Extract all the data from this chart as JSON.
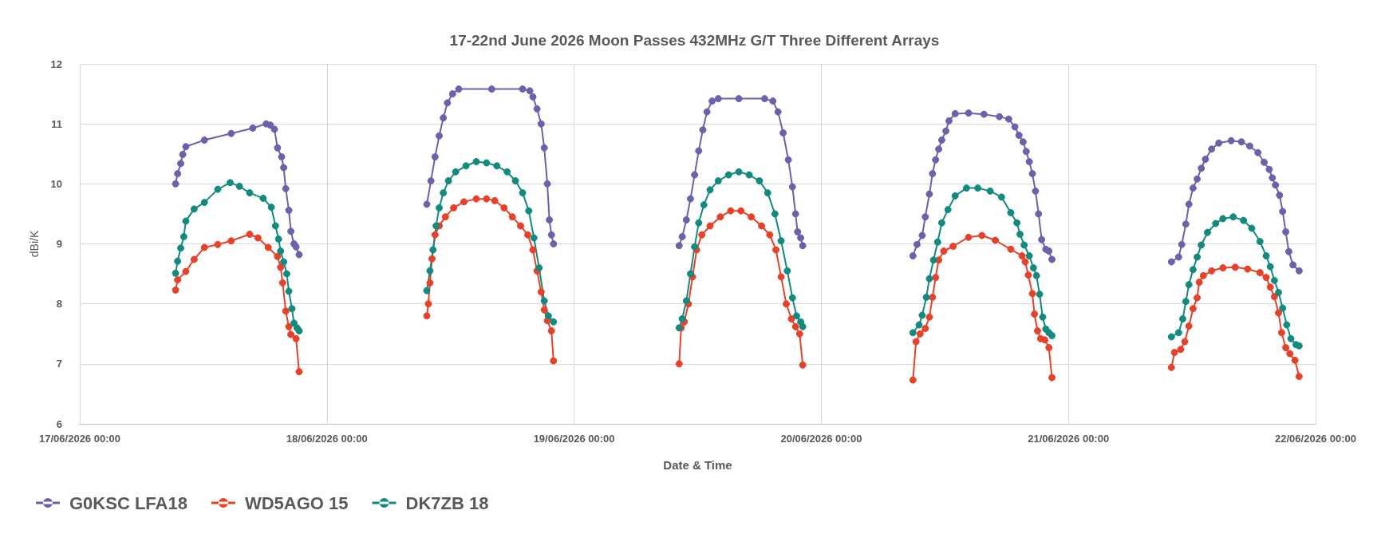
{
  "chart_data": {
    "type": "line",
    "title": "17-22nd June 2026 Moon Passes 432MHz G/T Three Different Arrays",
    "xlabel": "Date & Time",
    "ylabel": "dBi/K",
    "xlim": [
      "2026-06-17T00:00",
      "2026-06-22T00:00"
    ],
    "xticks": [
      {
        "value": "2026-06-17T00:00",
        "label": "17/06/2026 00:00"
      },
      {
        "value": "2026-06-18T00:00",
        "label": "18/06/2026 00:00"
      },
      {
        "value": "2026-06-19T00:00",
        "label": "19/06/2026 00:00"
      },
      {
        "value": "2026-06-20T00:00",
        "label": "20/06/2026 00:00"
      },
      {
        "value": "2026-06-21T00:00",
        "label": "21/06/2026 00:00"
      },
      {
        "value": "2026-06-22T00:00",
        "label": "22/06/2026 00:00"
      }
    ],
    "ylim": [
      6,
      12
    ],
    "yticks": [
      6,
      7,
      8,
      9,
      10,
      11,
      12
    ],
    "grid": true,
    "legend": "bottom left",
    "marker": "circle",
    "line_style": "solid",
    "series": [
      {
        "name": "G0KSC LFA18",
        "color": "#6a62aa",
        "x": [
          "2026-06-17T09:18",
          "2026-06-17T09:30",
          "2026-06-17T09:48",
          "2026-06-17T10:00",
          "2026-06-17T10:18",
          "2026-06-17T12:06",
          "2026-06-17T14:42",
          "2026-06-17T16:48",
          "2026-06-17T18:06",
          "2026-06-17T18:30",
          "2026-06-17T18:54",
          "2026-06-17T19:12",
          "2026-06-17T19:36",
          "2026-06-17T19:48",
          "2026-06-17T20:00",
          "2026-06-17T20:18",
          "2026-06-17T20:30",
          "2026-06-17T20:48",
          "2026-06-17T21:00",
          "2026-06-17T21:18",
          "2026-06-18T03:00",
          "2026-06-18T09:42",
          "2026-06-18T10:06",
          "2026-06-18T10:30",
          "2026-06-18T10:54",
          "2026-06-18T11:18",
          "2026-06-18T11:42",
          "2026-06-18T12:12",
          "2026-06-18T12:48",
          "2026-06-18T16:00",
          "2026-06-18T19:00",
          "2026-06-18T19:42",
          "2026-06-18T20:00",
          "2026-06-18T20:24",
          "2026-06-18T20:48",
          "2026-06-18T21:06",
          "2026-06-18T21:24",
          "2026-06-18T21:36",
          "2026-06-18T21:48",
          "2026-06-18T22:00",
          "2026-06-19T04:00",
          "2026-06-19T10:12",
          "2026-06-19T10:30",
          "2026-06-19T10:54",
          "2026-06-19T11:18",
          "2026-06-19T11:42",
          "2026-06-19T12:06",
          "2026-06-19T12:30",
          "2026-06-19T12:54",
          "2026-06-19T13:24",
          "2026-06-19T14:00",
          "2026-06-19T16:00",
          "2026-06-19T18:30",
          "2026-06-19T19:18",
          "2026-06-19T19:48",
          "2026-06-19T20:18",
          "2026-06-19T20:48",
          "2026-06-19T21:12",
          "2026-06-19T21:30",
          "2026-06-19T21:42",
          "2026-06-19T22:00",
          "2026-06-19T22:12",
          "2026-06-20T04:00",
          "2026-06-20T08:54",
          "2026-06-20T09:18",
          "2026-06-20T09:48",
          "2026-06-20T10:06",
          "2026-06-20T10:30",
          "2026-06-20T10:48",
          "2026-06-20T11:06",
          "2026-06-20T11:24",
          "2026-06-20T11:42",
          "2026-06-20T12:06",
          "2026-06-20T12:24",
          "2026-06-20T13:00",
          "2026-06-20T14:18",
          "2026-06-20T15:48",
          "2026-06-20T17:18",
          "2026-06-20T18:12",
          "2026-06-20T18:48",
          "2026-06-20T19:12",
          "2026-06-20T19:36",
          "2026-06-20T19:54",
          "2026-06-20T20:12",
          "2026-06-20T20:30",
          "2026-06-20T20:48",
          "2026-06-20T21:06",
          "2026-06-20T21:24",
          "2026-06-20T21:48",
          "2026-06-20T22:06",
          "2026-06-20T22:24",
          "2026-06-21T04:00",
          "2026-06-21T10:00",
          "2026-06-21T10:42",
          "2026-06-21T11:00",
          "2026-06-21T11:24",
          "2026-06-21T11:42",
          "2026-06-21T12:06",
          "2026-06-21T12:30",
          "2026-06-21T12:54",
          "2026-06-21T13:18",
          "2026-06-21T13:54",
          "2026-06-21T14:36",
          "2026-06-21T15:48",
          "2026-06-21T16:48",
          "2026-06-21T17:36",
          "2026-06-21T18:24",
          "2026-06-21T19:00",
          "2026-06-21T19:30",
          "2026-06-21T19:48",
          "2026-06-21T20:06",
          "2026-06-21T20:30",
          "2026-06-21T20:48",
          "2026-06-21T21:06",
          "2026-06-21T21:24",
          "2026-06-21T21:48",
          "2026-06-21T22:24"
        ],
        "values": [
          10.0,
          10.17,
          10.34,
          10.49,
          10.62,
          10.73,
          10.84,
          10.93,
          11.0,
          10.98,
          10.91,
          10.6,
          10.45,
          10.27,
          9.92,
          9.56,
          9.21,
          9.0,
          8.95,
          8.82,
          null,
          9.66,
          10.05,
          10.45,
          10.8,
          11.1,
          11.35,
          11.5,
          11.58,
          11.58,
          11.58,
          11.55,
          11.45,
          11.25,
          11.0,
          10.6,
          10.0,
          9.4,
          9.15,
          9.0,
          null,
          8.97,
          9.12,
          9.4,
          9.75,
          10.15,
          10.55,
          10.9,
          11.2,
          11.38,
          11.42,
          11.42,
          11.42,
          11.38,
          11.2,
          10.85,
          10.4,
          9.95,
          9.5,
          9.2,
          9.1,
          8.97,
          null,
          8.8,
          8.99,
          9.14,
          9.45,
          9.83,
          10.17,
          10.4,
          10.58,
          10.73,
          10.88,
          11.05,
          11.17,
          11.18,
          11.16,
          11.12,
          11.08,
          10.95,
          10.81,
          10.7,
          10.54,
          10.37,
          10.17,
          9.88,
          9.5,
          9.07,
          8.91,
          8.88,
          8.74,
          null,
          8.7,
          8.78,
          8.99,
          9.33,
          9.66,
          9.93,
          10.08,
          10.26,
          10.41,
          10.58,
          10.68,
          10.72,
          10.7,
          10.63,
          10.52,
          10.36,
          10.24,
          10.1,
          9.98,
          9.81,
          9.54,
          9.2,
          8.87,
          8.65,
          8.55
        ]
      },
      {
        "name": "WD5AGO 15",
        "color": "#e8412a",
        "x": [
          "2026-06-17T09:18",
          "2026-06-17T09:30",
          "2026-06-17T10:18",
          "2026-06-17T11:06",
          "2026-06-17T12:06",
          "2026-06-17T13:24",
          "2026-06-17T14:42",
          "2026-06-17T16:30",
          "2026-06-17T17:18",
          "2026-06-17T18:18",
          "2026-06-17T19:12",
          "2026-06-17T19:30",
          "2026-06-17T19:42",
          "2026-06-17T20:00",
          "2026-06-17T20:18",
          "2026-06-17T20:30",
          "2026-06-17T21:00",
          "2026-06-17T21:18",
          "2026-06-18T03:00",
          "2026-06-18T09:42",
          "2026-06-18T09:51",
          "2026-06-18T10:00",
          "2026-06-18T10:12",
          "2026-06-18T10:30",
          "2026-06-18T10:54",
          "2026-06-18T11:30",
          "2026-06-18T12:18",
          "2026-06-18T13:18",
          "2026-06-18T14:30",
          "2026-06-18T15:30",
          "2026-06-18T16:18",
          "2026-06-18T17:12",
          "2026-06-18T18:00",
          "2026-06-18T18:48",
          "2026-06-18T19:30",
          "2026-06-18T20:00",
          "2026-06-18T20:24",
          "2026-06-18T20:48",
          "2026-06-18T21:06",
          "2026-06-18T21:24",
          "2026-06-18T21:48",
          "2026-06-18T22:00",
          "2026-06-19T04:00",
          "2026-06-19T10:12",
          "2026-06-19T10:24",
          "2026-06-19T10:42",
          "2026-06-19T11:06",
          "2026-06-19T11:30",
          "2026-06-19T11:54",
          "2026-06-19T12:24",
          "2026-06-19T13:12",
          "2026-06-19T14:12",
          "2026-06-19T15:12",
          "2026-06-19T16:12",
          "2026-06-19T17:12",
          "2026-06-19T18:12",
          "2026-06-19T19:00",
          "2026-06-19T19:36",
          "2026-06-19T20:06",
          "2026-06-19T20:36",
          "2026-06-19T21:06",
          "2026-06-19T21:30",
          "2026-06-19T21:54",
          "2026-06-19T22:12",
          "2026-06-20T04:00",
          "2026-06-20T08:54",
          "2026-06-20T09:12",
          "2026-06-20T09:36",
          "2026-06-20T10:06",
          "2026-06-20T10:30",
          "2026-06-20T10:48",
          "2026-06-20T11:06",
          "2026-06-20T11:24",
          "2026-06-20T11:54",
          "2026-06-20T12:48",
          "2026-06-20T14:18",
          "2026-06-20T15:36",
          "2026-06-20T16:54",
          "2026-06-20T18:24",
          "2026-06-20T19:30",
          "2026-06-20T19:48",
          "2026-06-20T20:06",
          "2026-06-20T20:30",
          "2026-06-20T20:42",
          "2026-06-20T21:00",
          "2026-06-20T21:18",
          "2026-06-20T21:42",
          "2026-06-20T22:06",
          "2026-06-20T22:24",
          "2026-06-21T04:00",
          "2026-06-21T10:00",
          "2026-06-21T10:18",
          "2026-06-21T10:54",
          "2026-06-21T11:18",
          "2026-06-21T11:42",
          "2026-06-21T12:06",
          "2026-06-21T12:30",
          "2026-06-21T12:42",
          "2026-06-21T13:06",
          "2026-06-21T13:54",
          "2026-06-21T15:00",
          "2026-06-21T16:12",
          "2026-06-21T17:24",
          "2026-06-21T18:36",
          "2026-06-21T19:12",
          "2026-06-21T19:36",
          "2026-06-21T20:00",
          "2026-06-21T20:24",
          "2026-06-21T20:42",
          "2026-06-21T21:06",
          "2026-06-21T21:30",
          "2026-06-21T22:00",
          "2026-06-21T22:24"
        ],
        "values": [
          8.23,
          8.4,
          8.54,
          8.74,
          8.94,
          8.99,
          9.05,
          9.16,
          9.1,
          8.94,
          8.79,
          8.61,
          8.35,
          7.88,
          7.62,
          7.49,
          7.42,
          6.87,
          null,
          7.8,
          8.0,
          8.35,
          8.75,
          9.15,
          9.3,
          9.45,
          9.6,
          9.7,
          9.75,
          9.75,
          9.72,
          9.6,
          9.45,
          9.3,
          9.15,
          8.9,
          8.55,
          8.2,
          7.9,
          7.72,
          7.55,
          7.05,
          null,
          7.0,
          7.6,
          7.7,
          8.0,
          8.45,
          8.9,
          9.15,
          9.3,
          9.45,
          9.55,
          9.55,
          9.45,
          9.3,
          9.15,
          8.9,
          8.45,
          8.0,
          7.75,
          7.62,
          7.5,
          6.98,
          null,
          6.73,
          7.37,
          7.5,
          7.59,
          7.78,
          8.11,
          8.44,
          8.73,
          8.88,
          8.96,
          9.11,
          9.14,
          9.06,
          8.91,
          8.8,
          8.7,
          8.48,
          8.17,
          7.83,
          7.55,
          7.42,
          7.4,
          7.27,
          6.77,
          null,
          6.94,
          7.19,
          7.24,
          7.37,
          7.63,
          7.92,
          8.1,
          8.36,
          8.47,
          8.55,
          8.6,
          8.61,
          8.58,
          8.52,
          8.44,
          8.28,
          8.12,
          7.85,
          7.52,
          7.27,
          7.17,
          7.06,
          6.79
        ]
      },
      {
        "name": "DK7ZB 18",
        "color": "#138a7e",
        "x": [
          "2026-06-17T09:18",
          "2026-06-17T09:30",
          "2026-06-17T09:48",
          "2026-06-17T10:06",
          "2026-06-17T10:18",
          "2026-06-17T11:06",
          "2026-06-17T12:06",
          "2026-06-17T13:24",
          "2026-06-17T14:36",
          "2026-06-17T15:30",
          "2026-06-17T16:30",
          "2026-06-17T17:48",
          "2026-06-17T18:36",
          "2026-06-17T19:00",
          "2026-06-17T19:18",
          "2026-06-17T19:30",
          "2026-06-17T19:48",
          "2026-06-17T20:06",
          "2026-06-17T20:18",
          "2026-06-17T20:36",
          "2026-06-17T20:48",
          "2026-06-17T21:06",
          "2026-06-17T21:18",
          "2026-06-18T03:00",
          "2026-06-18T09:42",
          "2026-06-18T10:00",
          "2026-06-18T10:18",
          "2026-06-18T10:36",
          "2026-06-18T10:54",
          "2026-06-18T11:18",
          "2026-06-18T11:48",
          "2026-06-18T12:30",
          "2026-06-18T13:30",
          "2026-06-18T14:30",
          "2026-06-18T15:30",
          "2026-06-18T16:30",
          "2026-06-18T17:30",
          "2026-06-18T18:18",
          "2026-06-18T19:00",
          "2026-06-18T19:36",
          "2026-06-18T20:06",
          "2026-06-18T20:36",
          "2026-06-18T21:06",
          "2026-06-18T21:30",
          "2026-06-18T22:00",
          "2026-06-19T04:00",
          "2026-06-19T10:12",
          "2026-06-19T10:30",
          "2026-06-19T10:54",
          "2026-06-19T11:18",
          "2026-06-19T11:42",
          "2026-06-19T12:06",
          "2026-06-19T12:36",
          "2026-06-19T13:12",
          "2026-06-19T14:00",
          "2026-06-19T15:00",
          "2026-06-19T16:00",
          "2026-06-19T17:00",
          "2026-06-19T18:00",
          "2026-06-19T18:48",
          "2026-06-19T19:30",
          "2026-06-19T20:06",
          "2026-06-19T20:42",
          "2026-06-19T21:12",
          "2026-06-19T21:36",
          "2026-06-19T22:00",
          "2026-06-19T22:12",
          "2026-06-20T04:00",
          "2026-06-20T08:54",
          "2026-06-20T09:30",
          "2026-06-20T09:48",
          "2026-06-20T10:12",
          "2026-06-20T10:30",
          "2026-06-20T10:54",
          "2026-06-20T11:18",
          "2026-06-20T11:42",
          "2026-06-20T12:18",
          "2026-06-20T13:00",
          "2026-06-20T14:06",
          "2026-06-20T15:12",
          "2026-06-20T16:24",
          "2026-06-20T17:30",
          "2026-06-20T18:24",
          "2026-06-20T19:00",
          "2026-06-20T19:18",
          "2026-06-20T19:42",
          "2026-06-20T20:12",
          "2026-06-20T20:36",
          "2026-06-20T20:54",
          "2026-06-20T21:12",
          "2026-06-20T21:30",
          "2026-06-20T21:48",
          "2026-06-20T22:06",
          "2026-06-20T22:24",
          "2026-06-21T04:00",
          "2026-06-21T10:00",
          "2026-06-21T10:42",
          "2026-06-21T11:06",
          "2026-06-21T11:24",
          "2026-06-21T11:42",
          "2026-06-21T12:06",
          "2026-06-21T12:30",
          "2026-06-21T12:54",
          "2026-06-21T13:30",
          "2026-06-21T14:18",
          "2026-06-21T15:00",
          "2026-06-21T16:00",
          "2026-06-21T17:00",
          "2026-06-21T17:48",
          "2026-06-21T18:36",
          "2026-06-21T19:12",
          "2026-06-21T19:36",
          "2026-06-21T20:00",
          "2026-06-21T20:24",
          "2026-06-21T20:48",
          "2026-06-21T21:12",
          "2026-06-21T21:36",
          "2026-06-21T22:06",
          "2026-06-21T22:24"
        ],
        "values": [
          8.51,
          8.71,
          8.93,
          9.12,
          9.38,
          9.58,
          9.69,
          9.91,
          10.02,
          9.96,
          9.85,
          9.76,
          9.61,
          9.3,
          9.08,
          8.88,
          8.7,
          8.5,
          8.21,
          7.92,
          7.68,
          7.6,
          7.55,
          null,
          8.22,
          8.55,
          8.9,
          9.3,
          9.6,
          9.85,
          10.05,
          10.2,
          10.3,
          10.37,
          10.35,
          10.3,
          10.2,
          10.05,
          9.85,
          9.55,
          9.1,
          8.6,
          8.05,
          7.8,
          7.7,
          null,
          7.6,
          7.75,
          8.05,
          8.5,
          8.95,
          9.35,
          9.65,
          9.9,
          10.05,
          10.15,
          10.2,
          10.15,
          10.05,
          9.85,
          9.5,
          9.05,
          8.55,
          8.1,
          7.8,
          7.7,
          7.62,
          null,
          7.52,
          7.65,
          7.81,
          8.11,
          8.42,
          8.73,
          9.03,
          9.35,
          9.57,
          9.8,
          9.93,
          9.93,
          9.88,
          9.78,
          9.52,
          9.35,
          9.16,
          8.98,
          8.8,
          8.6,
          8.47,
          8.16,
          7.78,
          7.58,
          7.52,
          7.47,
          null,
          7.45,
          7.52,
          7.75,
          8.04,
          8.32,
          8.57,
          8.78,
          8.98,
          9.19,
          9.34,
          9.42,
          9.45,
          9.39,
          9.26,
          9.04,
          8.8,
          8.62,
          8.39,
          8.19,
          7.93,
          7.65,
          7.42,
          7.32,
          7.3
        ]
      }
    ]
  }
}
